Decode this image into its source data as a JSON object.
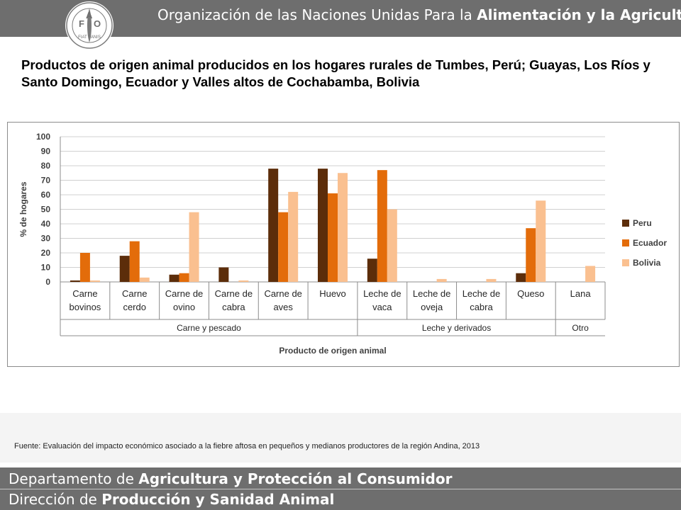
{
  "header": {
    "org_prefix": "Organización de las Naciones Unidas Para la ",
    "org_bold": "Alimentación y la Agricultura",
    "logo_letters": [
      "F",
      "A",
      "O"
    ],
    "logo_motto": "FIAT PANIS"
  },
  "slide_title": "Productos de origen animal producidos en los hogares rurales de Tumbes, Perú; Guayas, Los Ríos y Santo Domingo, Ecuador y Valles altos de Cochabamba, Bolivia",
  "source": "Fuente: Evaluación del impacto económico asociado a la fiebre aftosa en pequeños y medianos productores de la región Andina, 2013",
  "footer": {
    "line1_a": "Departamento de ",
    "line1_b": "Agricultura y Protección al Consumidor",
    "line2_a": "Dirección de ",
    "line2_b": "Producción y Sanidad Animal"
  },
  "chart_data": {
    "type": "bar",
    "ylabel": "% de hogares",
    "xlabel": "Producto de origen animal",
    "ylim": [
      0,
      100
    ],
    "yticks": [
      0,
      10,
      20,
      30,
      40,
      50,
      60,
      70,
      80,
      90,
      100
    ],
    "grid": true,
    "legend_position": "right",
    "categories": [
      [
        "Carne",
        "bovinos"
      ],
      [
        "Carne",
        "cerdo"
      ],
      [
        "Carne de",
        "ovino"
      ],
      [
        "Carne de",
        "cabra"
      ],
      [
        "Carne de",
        "aves"
      ],
      [
        "Huevo"
      ],
      [
        "Leche de",
        "vaca"
      ],
      [
        "Leche de",
        "oveja"
      ],
      [
        "Leche de",
        "cabra"
      ],
      [
        "Queso"
      ],
      [
        "Lana"
      ]
    ],
    "groups": [
      {
        "label": "Carne y pescado",
        "start": 0,
        "end": 5
      },
      {
        "label": "Leche y derivados",
        "start": 6,
        "end": 9
      },
      {
        "label": "Otro",
        "start": 10,
        "end": 10
      }
    ],
    "series": [
      {
        "name": "Peru",
        "color": "#5c2d0a",
        "values": [
          1,
          18,
          5,
          10,
          78,
          78,
          16,
          0,
          0,
          6,
          0
        ]
      },
      {
        "name": "Ecuador",
        "color": "#e36c0a",
        "values": [
          20,
          28,
          6,
          0,
          48,
          61,
          77,
          0,
          0,
          37,
          0
        ]
      },
      {
        "name": "Bolivia",
        "color": "#fac090",
        "values": [
          1,
          3,
          48,
          1,
          62,
          75,
          50,
          2,
          2,
          56,
          11
        ]
      }
    ]
  }
}
